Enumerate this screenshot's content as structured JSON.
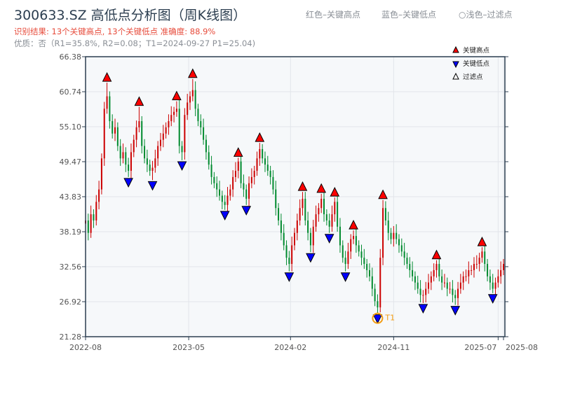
{
  "header": {
    "title": "300633.SZ 高低点分析图（周K线图）",
    "result_line": "识别结果: 13个关键高点, 13个关键低点   准确度: 88.9%",
    "quality_line": "优质：否（R1=35.8%, R2=0.08；T1=2024-09-27 P1=25.04)",
    "legend_red": "红色–关键高点",
    "legend_blue": "蓝色–关键低点",
    "legend_light": "○浅色–过滤点"
  },
  "chart_data": {
    "type": "candlestick",
    "title": "300633.SZ 高低点分析图（周K线图）",
    "ylim": [
      21.28,
      66.38
    ],
    "yticks": [
      "21.28",
      "26.92",
      "32.56",
      "38.19",
      "43.83",
      "49.47",
      "55.10",
      "60.74",
      "66.38"
    ],
    "xticks": [
      {
        "label": "2022-08",
        "week": 0
      },
      {
        "label": "2023-05",
        "week": 38.5
      },
      {
        "label": "2024-02",
        "week": 76.5
      },
      {
        "label": "2024-11",
        "week": 115
      },
      {
        "label": "2025-07",
        "week": 154
      },
      {
        "label": "2025-08",
        "week": 156
      }
    ],
    "legend": [
      {
        "label": "关键高点",
        "color": "#ff0000"
      },
      {
        "label": "关键低点",
        "color": "#0000ff"
      },
      {
        "label": "过滤点",
        "color": "#ffffff"
      }
    ],
    "legend_position": "top-right",
    "up_color": "#cc0000",
    "down_color": "#008a2e",
    "weekly_close": [
      40,
      38,
      41,
      40,
      43,
      45,
      50,
      58,
      60,
      56,
      54,
      55,
      52,
      50,
      51,
      49,
      48,
      51,
      53,
      55,
      56,
      52,
      50,
      49,
      48,
      48.5,
      50,
      52,
      53,
      54,
      55,
      56,
      57,
      57.5,
      58,
      52,
      51,
      57,
      59,
      60,
      61,
      58,
      56,
      55,
      53,
      51,
      49,
      47,
      46,
      45,
      44,
      43,
      42.5,
      44,
      45,
      47,
      48,
      49.5,
      46,
      45,
      43.5,
      46,
      47,
      48,
      50,
      51.5,
      50,
      49,
      48,
      47,
      45,
      42,
      40,
      38,
      36,
      34,
      33,
      36,
      38,
      40,
      42,
      43.5,
      40,
      38,
      36,
      39,
      41,
      42,
      43.5,
      41,
      40,
      39,
      41,
      43,
      39,
      36,
      34,
      33,
      35,
      37,
      37.5,
      36,
      35,
      34,
      33,
      32,
      31,
      29,
      27,
      26,
      34,
      42,
      40,
      38,
      37,
      38,
      37,
      36,
      35,
      34,
      33,
      32,
      31,
      30,
      29,
      28,
      28,
      29,
      30,
      31,
      32,
      33,
      31,
      30,
      30,
      29,
      29,
      28,
      27.5,
      29,
      30,
      31,
      31,
      32,
      32,
      33,
      33,
      34,
      35,
      33,
      31,
      30,
      29,
      30,
      31,
      32,
      33
    ],
    "key_highs": [
      {
        "week": 8,
        "price": 62.2
      },
      {
        "week": 20,
        "price": 58.3
      },
      {
        "week": 34,
        "price": 59.2
      },
      {
        "week": 40,
        "price": 62.8
      },
      {
        "week": 57,
        "price": 50.1
      },
      {
        "week": 65,
        "price": 52.5
      },
      {
        "week": 81,
        "price": 44.6
      },
      {
        "week": 88,
        "price": 44.3
      },
      {
        "week": 93,
        "price": 43.7
      },
      {
        "week": 100,
        "price": 38.4
      },
      {
        "week": 111,
        "price": 43.3
      },
      {
        "week": 131,
        "price": 33.6
      },
      {
        "week": 148,
        "price": 35.7
      }
    ],
    "key_lows": [
      {
        "week": 16,
        "price": 47.0
      },
      {
        "week": 25,
        "price": 46.5
      },
      {
        "week": 36,
        "price": 49.7
      },
      {
        "week": 52,
        "price": 41.7
      },
      {
        "week": 60,
        "price": 42.5
      },
      {
        "week": 76,
        "price": 31.8
      },
      {
        "week": 84,
        "price": 34.9
      },
      {
        "week": 91,
        "price": 38.0
      },
      {
        "week": 97,
        "price": 31.8
      },
      {
        "week": 109,
        "price": 25.04
      },
      {
        "week": 126,
        "price": 26.7
      },
      {
        "week": 138,
        "price": 26.4
      },
      {
        "week": 152,
        "price": 28.3
      }
    ],
    "annotation": {
      "label": "T1",
      "week": 109,
      "price": 25.04,
      "color": "#f39c12"
    }
  }
}
